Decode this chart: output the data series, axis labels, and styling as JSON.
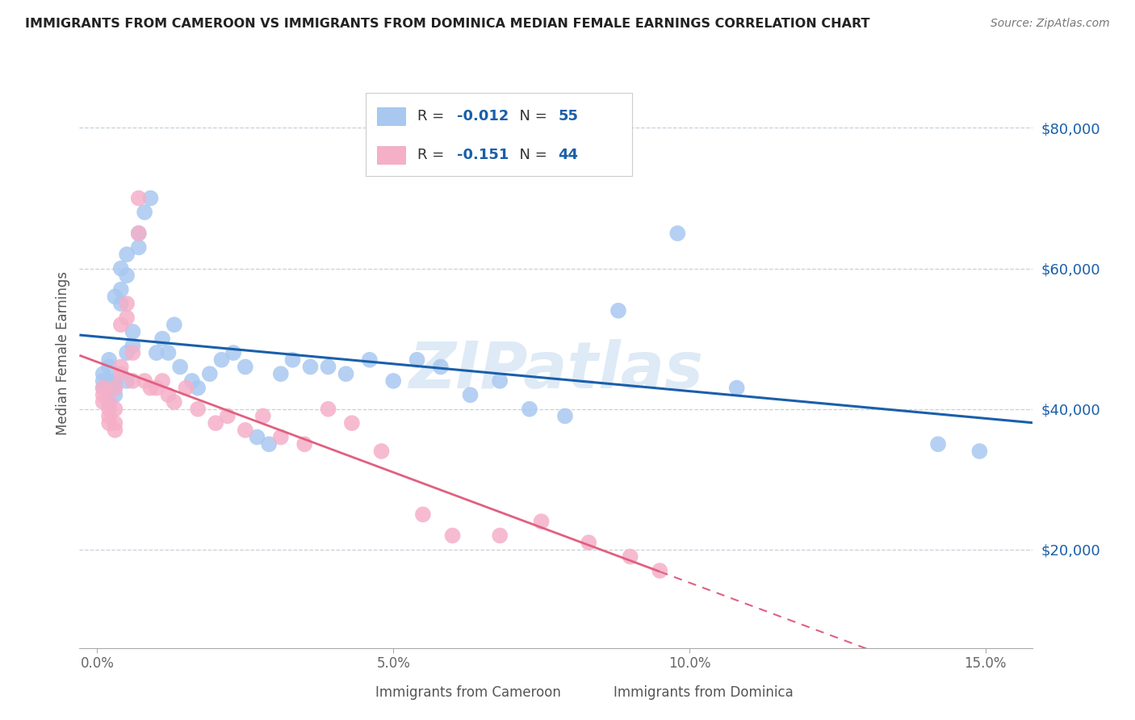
{
  "title": "IMMIGRANTS FROM CAMEROON VS IMMIGRANTS FROM DOMINICA MEDIAN FEMALE EARNINGS CORRELATION CHART",
  "source": "Source: ZipAtlas.com",
  "ylabel": "Median Female Earnings",
  "ytick_labels": [
    "$20,000",
    "$40,000",
    "$60,000",
    "$80,000"
  ],
  "ytick_vals": [
    20000,
    40000,
    60000,
    80000
  ],
  "xtick_labels": [
    "0.0%",
    "5.0%",
    "10.0%",
    "15.0%"
  ],
  "xtick_vals": [
    0.0,
    0.05,
    0.1,
    0.15
  ],
  "xlim": [
    -0.003,
    0.158
  ],
  "ylim": [
    6000,
    90000
  ],
  "legend_label1": "Immigrants from Cameroon",
  "legend_label2": "Immigrants from Dominica",
  "R1": "-0.012",
  "N1": "55",
  "R2": "-0.151",
  "N2": "44",
  "color1": "#a8c8f0",
  "color2": "#f5b0c8",
  "line_color1": "#1a5faa",
  "line_color2": "#e06080",
  "text_blue": "#1a5faa",
  "watermark": "ZIPatlas",
  "cameroon_x": [
    0.001,
    0.001,
    0.001,
    0.002,
    0.002,
    0.002,
    0.002,
    0.003,
    0.003,
    0.003,
    0.003,
    0.004,
    0.004,
    0.004,
    0.005,
    0.005,
    0.005,
    0.005,
    0.006,
    0.006,
    0.007,
    0.007,
    0.008,
    0.009,
    0.01,
    0.011,
    0.012,
    0.013,
    0.014,
    0.016,
    0.017,
    0.019,
    0.021,
    0.023,
    0.025,
    0.027,
    0.029,
    0.031,
    0.033,
    0.036,
    0.039,
    0.042,
    0.046,
    0.05,
    0.054,
    0.058,
    0.063,
    0.068,
    0.073,
    0.079,
    0.088,
    0.098,
    0.108,
    0.142,
    0.149
  ],
  "cameroon_y": [
    43000,
    45000,
    44000,
    41000,
    44000,
    46000,
    47000,
    42000,
    44000,
    43000,
    56000,
    57000,
    60000,
    55000,
    59000,
    62000,
    44000,
    48000,
    49000,
    51000,
    63000,
    65000,
    68000,
    70000,
    48000,
    50000,
    48000,
    52000,
    46000,
    44000,
    43000,
    45000,
    47000,
    48000,
    46000,
    36000,
    35000,
    45000,
    47000,
    46000,
    46000,
    45000,
    47000,
    44000,
    47000,
    46000,
    42000,
    44000,
    40000,
    39000,
    54000,
    65000,
    43000,
    35000,
    34000
  ],
  "dominica_x": [
    0.001,
    0.001,
    0.001,
    0.002,
    0.002,
    0.002,
    0.002,
    0.003,
    0.003,
    0.003,
    0.003,
    0.004,
    0.004,
    0.004,
    0.005,
    0.005,
    0.006,
    0.006,
    0.007,
    0.007,
    0.008,
    0.009,
    0.01,
    0.011,
    0.012,
    0.013,
    0.015,
    0.017,
    0.02,
    0.022,
    0.025,
    0.028,
    0.031,
    0.035,
    0.039,
    0.043,
    0.048,
    0.055,
    0.06,
    0.068,
    0.075,
    0.083,
    0.09,
    0.095
  ],
  "dominica_y": [
    42000,
    43000,
    41000,
    40000,
    41000,
    38000,
    39000,
    37000,
    38000,
    40000,
    43000,
    45000,
    46000,
    52000,
    53000,
    55000,
    44000,
    48000,
    65000,
    70000,
    44000,
    43000,
    43000,
    44000,
    42000,
    41000,
    43000,
    40000,
    38000,
    39000,
    37000,
    39000,
    36000,
    35000,
    40000,
    38000,
    34000,
    25000,
    22000,
    22000,
    24000,
    21000,
    19000,
    17000
  ]
}
